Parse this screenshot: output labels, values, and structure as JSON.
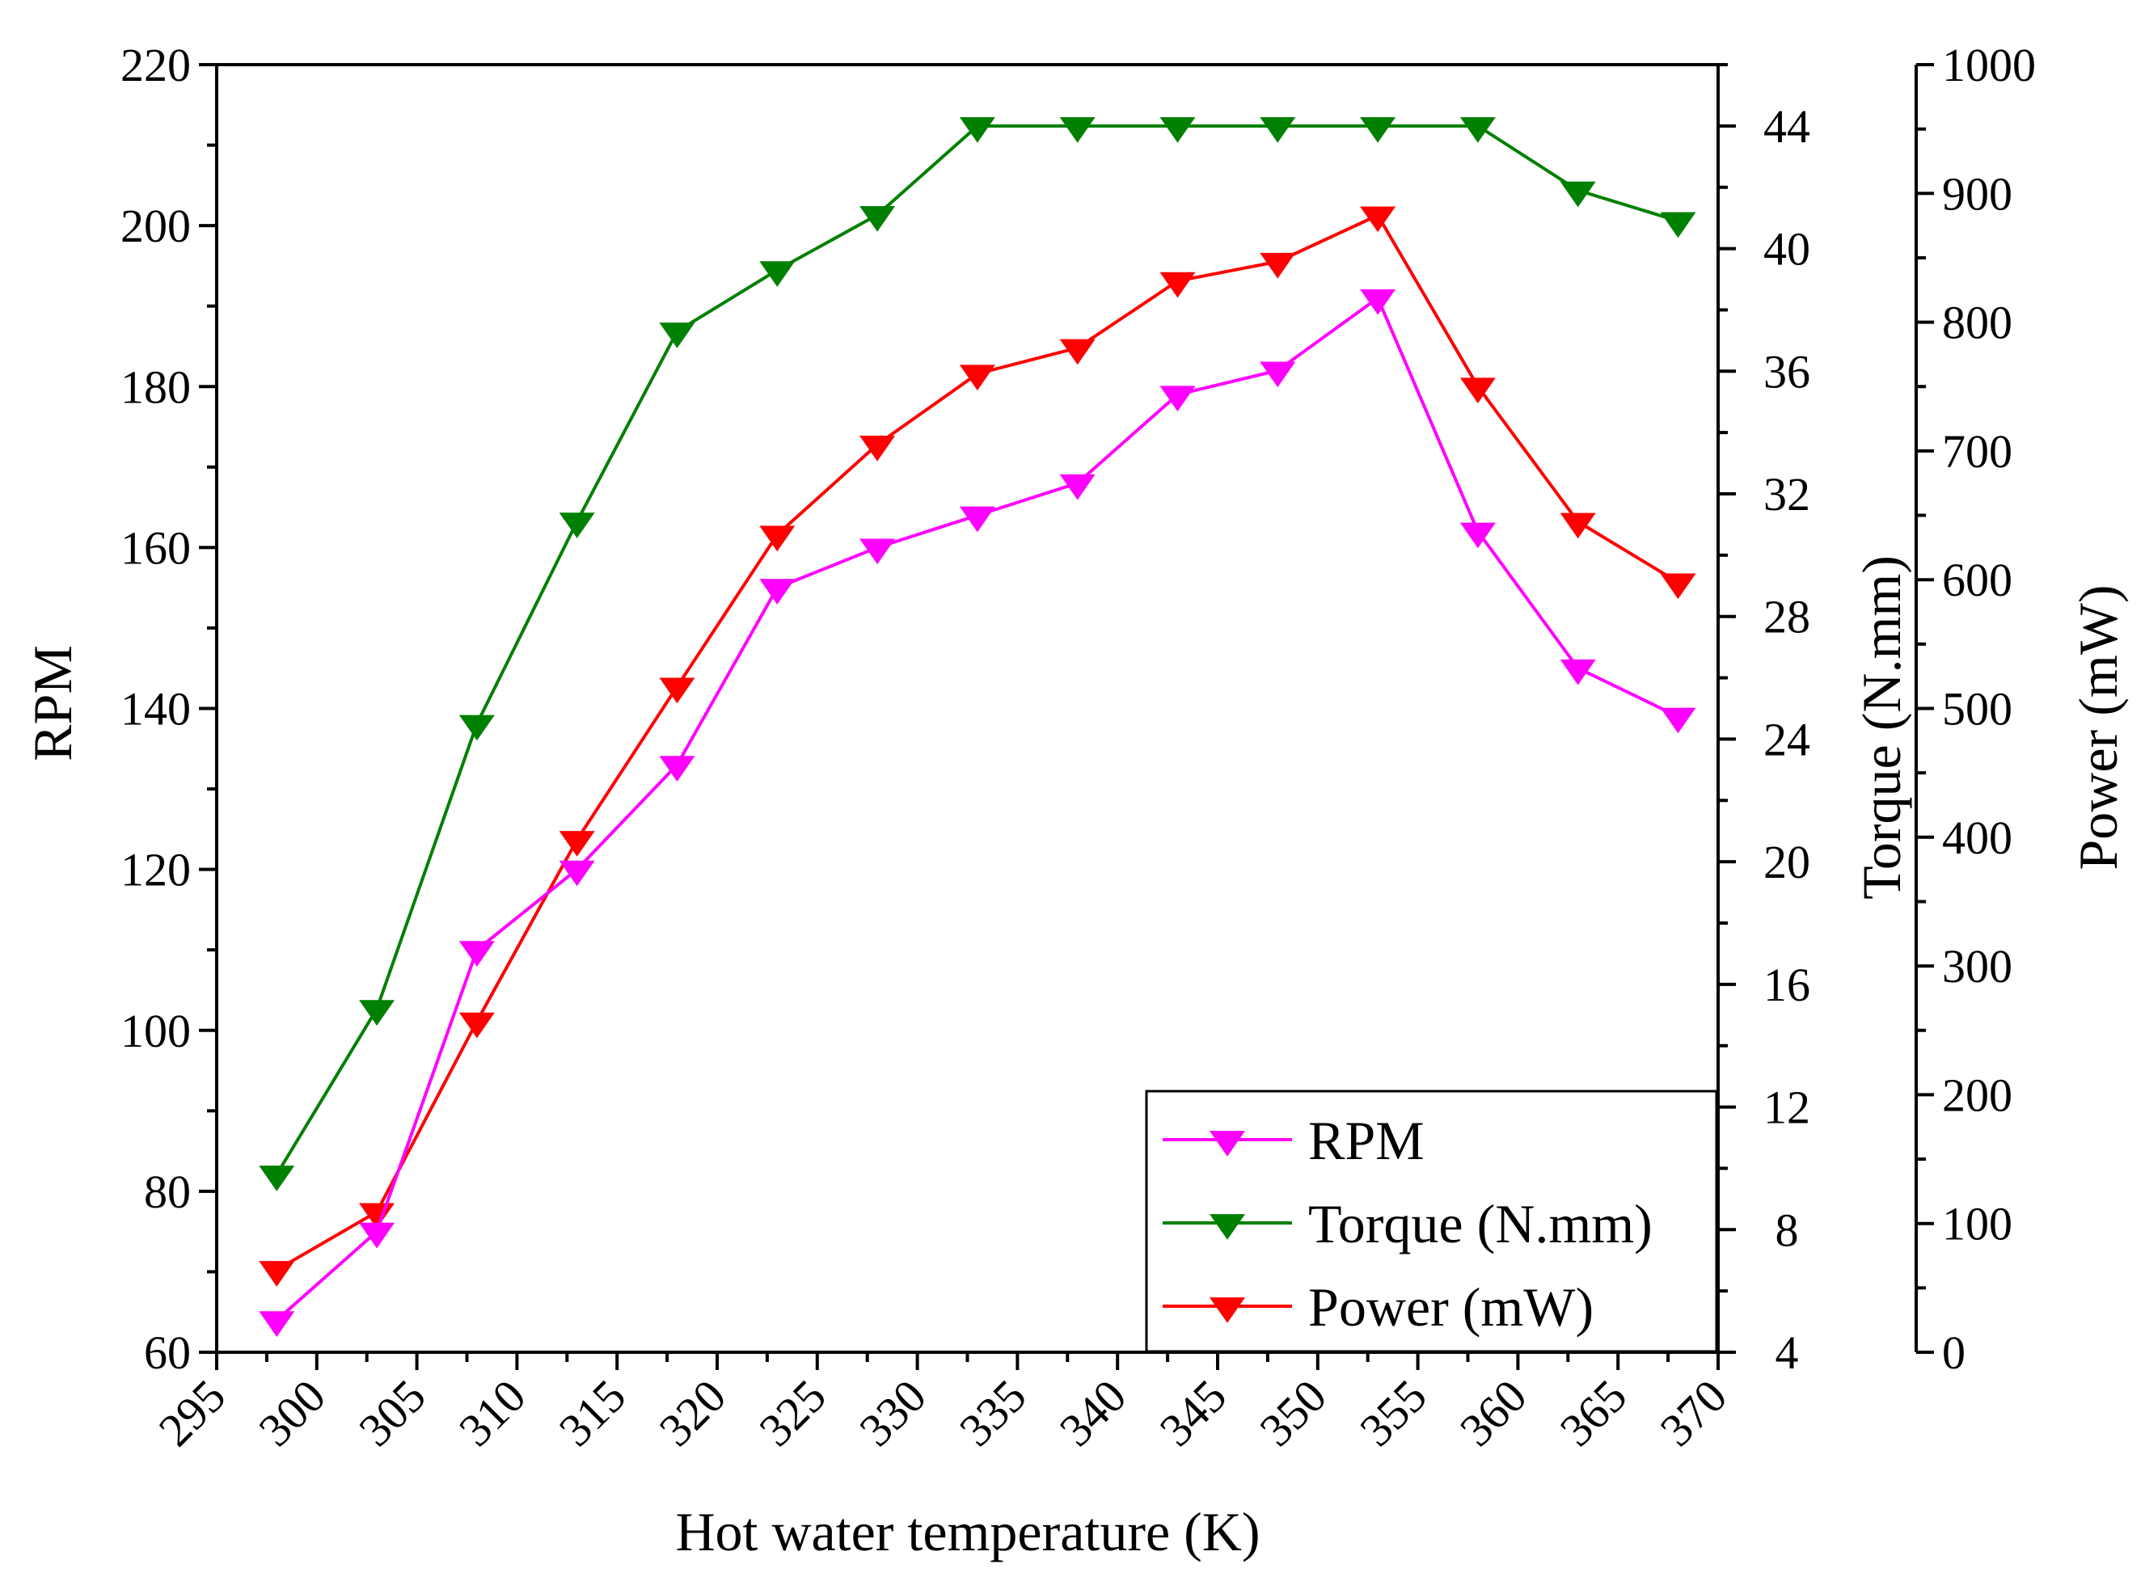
{
  "chart_data": {
    "type": "line",
    "title": "",
    "xlabel": "Hot water temperature (K)",
    "xlim": [
      295,
      370
    ],
    "x_ticks": [
      295,
      300,
      305,
      310,
      315,
      320,
      325,
      330,
      335,
      340,
      345,
      350,
      355,
      360,
      365,
      370
    ],
    "x": [
      298,
      303,
      308,
      313,
      318,
      323,
      328,
      333,
      338,
      343,
      348,
      353,
      358,
      363,
      368
    ],
    "axes": {
      "left": {
        "label": "RPM",
        "range": [
          60,
          220
        ],
        "ticks": [
          60,
          80,
          100,
          120,
          140,
          160,
          180,
          200,
          220
        ]
      },
      "right": {
        "label": "Torque (N.mm)",
        "range": [
          4,
          46
        ],
        "ticks": [
          4,
          8,
          12,
          16,
          20,
          24,
          28,
          32,
          36,
          40,
          44
        ]
      },
      "right2": {
        "label": "Power (mW)",
        "range": [
          0,
          1000
        ],
        "ticks": [
          0,
          100,
          200,
          300,
          400,
          500,
          600,
          700,
          800,
          900,
          1000
        ]
      }
    },
    "series": [
      {
        "name": "RPM",
        "axis": "left",
        "color": "#ff00ff",
        "marker": "down-triangle",
        "values": [
          64,
          75,
          110,
          120,
          133,
          155,
          160,
          164,
          168,
          179,
          182,
          191,
          162,
          145,
          139
        ]
      },
      {
        "name": "Torque (N.mm)",
        "axis": "right",
        "color": "#008000",
        "marker": "down-triangle",
        "values": [
          9.8,
          15.2,
          24.5,
          31.1,
          37.3,
          39.3,
          41.1,
          44,
          44,
          44,
          44,
          44,
          44,
          41.9,
          40.9
        ]
      },
      {
        "name": "Power (mW)",
        "axis": "right2",
        "color": "#ff0000",
        "marker": "down-triangle",
        "values": [
          64,
          109,
          257,
          398,
          517,
          635,
          705,
          760,
          780,
          832,
          847,
          883,
          750,
          645,
          598
        ]
      }
    ],
    "legend": {
      "position": "bottom-right",
      "entries": [
        "RPM",
        "Torque (N.mm)",
        "Power (mW)"
      ]
    },
    "grid": false
  }
}
